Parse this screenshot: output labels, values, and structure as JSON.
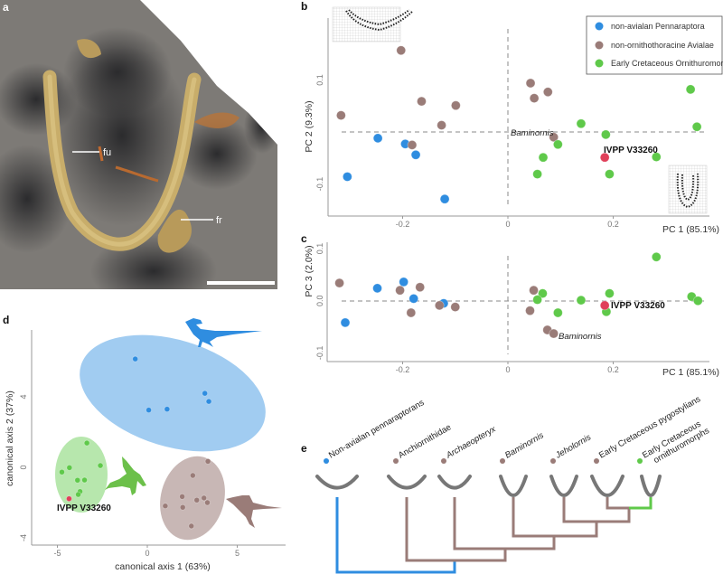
{
  "panel_labels": {
    "a": "a",
    "b": "b",
    "c": "c",
    "d": "d",
    "e": "e"
  },
  "panel_a": {
    "labels": {
      "fu": "fu",
      "fr": "fr"
    }
  },
  "colors": {
    "blue": "#2f8de0",
    "brown": "#9a7c78",
    "green": "#5fc94a",
    "red": "#e0405a"
  },
  "chart_data": [
    {
      "panel": "b",
      "type": "scatter",
      "xlabel": "PC 1 (85.1%)",
      "ylabel": "PC 2 (9.3%)",
      "xticks": [
        "-0.2",
        "0",
        "0.2"
      ],
      "yticks": [
        "0.1",
        "-0.1"
      ],
      "legend": {
        "placement": "top-right",
        "entries": [
          "non-avialan Pennaraptora",
          "non-ornithothoracine Avialae",
          "Early Cretaceous Ornithuromorpha"
        ]
      },
      "annotations": {
        "baminornis": "Baminornis",
        "specimen": "IVPP V33260"
      },
      "series": [
        {
          "name": "non-avialan Pennaraptora",
          "color": "#2f8de0",
          "points": [
            [
              -0.247,
              -0.012
            ],
            [
              -0.195,
              -0.023
            ],
            [
              -0.175,
              -0.044
            ],
            [
              -0.305,
              -0.086
            ],
            [
              -0.12,
              -0.129
            ]
          ]
        },
        {
          "name": "non-ornithothoracine Avialae",
          "color": "#9a7c78",
          "points": [
            [
              -0.203,
              0.157
            ],
            [
              -0.317,
              0.032
            ],
            [
              -0.164,
              0.059
            ],
            [
              -0.099,
              0.051
            ],
            [
              -0.126,
              0.013
            ],
            [
              -0.182,
              -0.025
            ],
            [
              0.043,
              0.094
            ],
            [
              0.05,
              0.065
            ],
            [
              0.076,
              0.077
            ],
            [
              0.087,
              -0.01
            ]
          ]
        },
        {
          "name": "Early Cretaceous Ornithuromorpha",
          "color": "#5fc94a",
          "points": [
            [
              0.139,
              0.016
            ],
            [
              0.186,
              -0.005
            ],
            [
              0.095,
              -0.024
            ],
            [
              0.067,
              -0.049
            ],
            [
              0.056,
              -0.081
            ],
            [
              0.193,
              -0.081
            ],
            [
              0.282,
              -0.048
            ],
            [
              0.347,
              0.082
            ],
            [
              0.359,
              0.01
            ]
          ]
        },
        {
          "name": "IVPP V33260",
          "color": "#e0405a",
          "points": [
            [
              0.184,
              -0.049
            ]
          ]
        }
      ]
    },
    {
      "panel": "c",
      "type": "scatter",
      "xlabel": "PC 1 (85.1%)",
      "ylabel": "PC 3 (2.0%)",
      "xticks": [
        "-0.2",
        "0",
        "0.2"
      ],
      "yticks": [
        "0.1",
        "0.0",
        "-0.1"
      ],
      "annotations": {
        "baminornis": "Baminornis",
        "specimen": "IVPP V33260"
      },
      "series": [
        {
          "name": "non-avialan Pennaraptora",
          "color": "#2f8de0",
          "points": [
            [
              -0.248,
              0.024
            ],
            [
              -0.198,
              0.036
            ],
            [
              -0.179,
              0.004
            ],
            [
              -0.122,
              -0.005
            ],
            [
              -0.309,
              -0.042
            ]
          ]
        },
        {
          "name": "non-ornithothoracine Avialae",
          "color": "#9a7c78",
          "points": [
            [
              -0.32,
              0.034
            ],
            [
              -0.205,
              0.02
            ],
            [
              -0.167,
              0.026
            ],
            [
              -0.184,
              -0.023
            ],
            [
              -0.13,
              -0.009
            ],
            [
              -0.1,
              -0.012
            ],
            [
              0.049,
              0.02
            ],
            [
              0.042,
              -0.019
            ],
            [
              0.075,
              -0.056
            ],
            [
              0.087,
              -0.063
            ]
          ]
        },
        {
          "name": "Early Cretaceous Ornithuromorpha",
          "color": "#5fc94a",
          "points": [
            [
              0.066,
              0.014
            ],
            [
              0.056,
              0.002
            ],
            [
              0.139,
              0.001
            ],
            [
              0.095,
              -0.023
            ],
            [
              0.193,
              0.014
            ],
            [
              0.187,
              -0.021
            ],
            [
              0.282,
              0.084
            ],
            [
              0.349,
              0.008
            ],
            [
              0.361,
              0.0
            ]
          ]
        },
        {
          "name": "IVPP V33260",
          "color": "#e0405a",
          "points": [
            [
              0.184,
              -0.009
            ]
          ]
        }
      ]
    },
    {
      "panel": "d",
      "type": "scatter",
      "xlabel": "canonical axis 1 (63%)",
      "ylabel": "canonical axis 2 (37%)",
      "xticks": [
        "-5",
        "0",
        "5"
      ],
      "yticks": [
        "4",
        "0",
        "-4"
      ],
      "annotations": {
        "specimen": "IVPP V33260"
      },
      "series": [
        {
          "name": "non-avialan Pennaraptora",
          "color": "#2f8de0",
          "points": [
            [
              -0.67,
              6.15
            ],
            [
              0.08,
              3.25
            ],
            [
              1.1,
              3.3
            ],
            [
              3.2,
              4.2
            ],
            [
              3.42,
              3.74
            ]
          ]
        },
        {
          "name": "Early Cretaceous Ornithuromorpha",
          "color": "#5fc94a",
          "points": [
            [
              -3.36,
              1.38
            ],
            [
              -2.61,
              0.1
            ],
            [
              -4.33,
              -0.02
            ],
            [
              -4.75,
              -0.27
            ],
            [
              -3.88,
              -0.73
            ],
            [
              -3.49,
              -0.72
            ],
            [
              -3.74,
              -1.37
            ],
            [
              -3.84,
              -1.54
            ]
          ]
        },
        {
          "name": "non-ornithothoracine Avialae",
          "color": "#9a7c78",
          "points": [
            [
              3.37,
              0.34
            ],
            [
              2.53,
              -0.46
            ],
            [
              1.94,
              -1.66
            ],
            [
              2.75,
              -1.86
            ],
            [
              3.15,
              -1.74
            ],
            [
              3.34,
              -2.0
            ],
            [
              1.0,
              -2.19
            ],
            [
              1.97,
              -2.27
            ],
            [
              2.45,
              -3.33
            ]
          ]
        },
        {
          "name": "IVPP V33260",
          "color": "#e0405a",
          "points": [
            [
              -4.35,
              -1.78
            ]
          ]
        }
      ]
    }
  ],
  "cladogram": {
    "taxa": [
      {
        "label": "Non-avialan pennaraptorans",
        "italic": false,
        "color": "#2f8de0"
      },
      {
        "label": "Anchiornithidae",
        "italic": false,
        "color": "#9a7c78"
      },
      {
        "label": "Archaeopteryx",
        "italic": true,
        "color": "#9a7c78"
      },
      {
        "label": "Baminornis",
        "italic": true,
        "color": "#9a7c78"
      },
      {
        "label": "Jeholornis",
        "italic": true,
        "color": "#9a7c78"
      },
      {
        "label": "Early Cretaceous pygostylians",
        "italic": false,
        "color": "#9a7c78"
      },
      {
        "label": "Early Cretaceous",
        "label2": "ornithuromorphs",
        "italic": false,
        "color": "#5fc94a"
      }
    ]
  }
}
